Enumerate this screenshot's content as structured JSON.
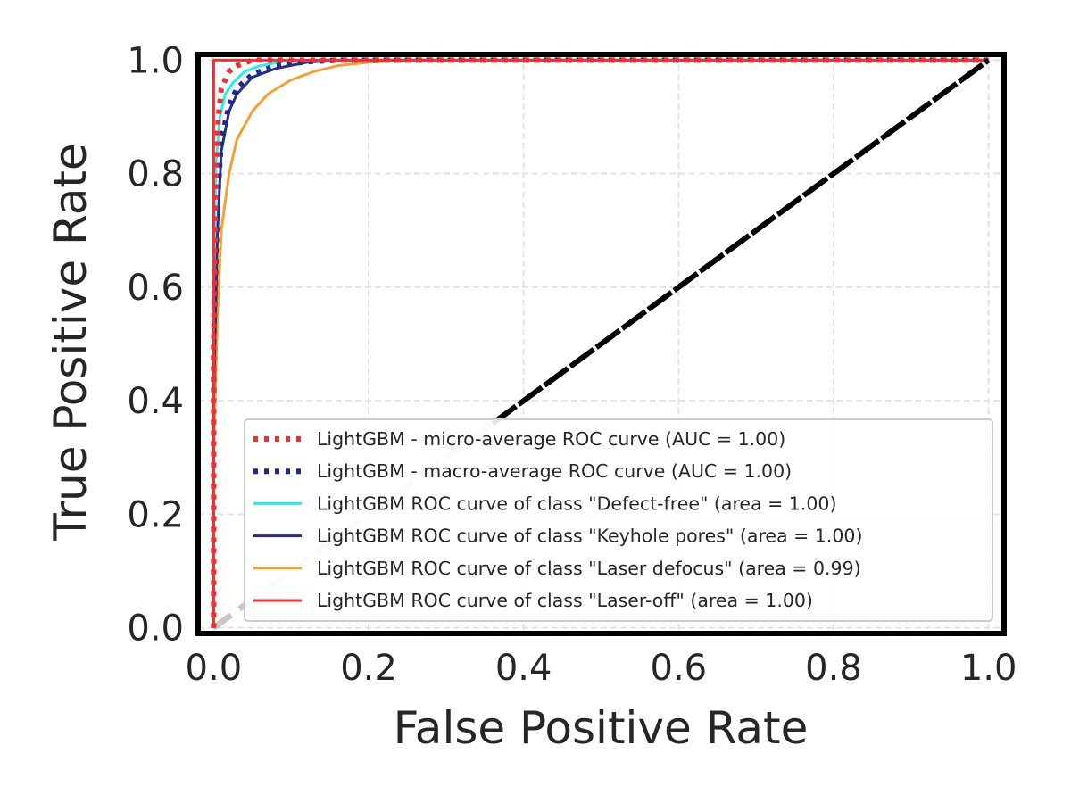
{
  "chart_data": {
    "type": "line",
    "title": "",
    "xlabel": "False Positive Rate",
    "ylabel": "True Positive Rate",
    "xlim": [
      -0.02,
      1.02
    ],
    "ylim": [
      -0.01,
      1.01
    ],
    "xticks": [
      0.0,
      0.2,
      0.4,
      0.6,
      0.8,
      1.0
    ],
    "yticks": [
      0.0,
      0.2,
      0.4,
      0.6,
      0.8,
      1.0
    ],
    "xtick_labels": [
      "0.0",
      "0.2",
      "0.4",
      "0.6",
      "0.8",
      "1.0"
    ],
    "ytick_labels": [
      "0.0",
      "0.2",
      "0.4",
      "0.6",
      "0.8",
      "1.0"
    ],
    "grid": true,
    "legend_position": "lower-right",
    "series": [
      {
        "name": "LightGBM - micro-average ROC curve (AUC = 1.00)",
        "color": "#f03030",
        "style": "dotted",
        "x": [
          0.0,
          0.0,
          0.003,
          0.006,
          0.01,
          0.02,
          0.03,
          0.05,
          1.0
        ],
        "y": [
          0.0,
          0.5,
          0.8,
          0.9,
          0.95,
          0.98,
          0.99,
          1.0,
          1.0
        ]
      },
      {
        "name": "LightGBM - macro-average ROC curve (AUC = 1.00)",
        "color": "#1f2a8a",
        "style": "dotted",
        "x": [
          0.0,
          0.0,
          0.005,
          0.01,
          0.02,
          0.03,
          0.05,
          0.08,
          0.12,
          0.16,
          1.0
        ],
        "y": [
          0.0,
          0.5,
          0.75,
          0.86,
          0.92,
          0.95,
          0.975,
          0.99,
          0.997,
          1.0,
          1.0
        ]
      },
      {
        "name": "LightGBM ROC curve of class \"Defect-free\" (area = 1.00)",
        "color": "#22f0f0",
        "style": "solid",
        "x": [
          0.0,
          0.0,
          0.003,
          0.008,
          0.015,
          0.025,
          0.04,
          0.06,
          0.1,
          1.0
        ],
        "y": [
          0.0,
          0.6,
          0.82,
          0.9,
          0.94,
          0.96,
          0.98,
          0.99,
          1.0,
          1.0
        ]
      },
      {
        "name": "LightGBM ROC curve of class \"Keyhole pores\" (area = 1.00)",
        "color": "#2a2a96",
        "style": "solid",
        "x": [
          0.0,
          0.0,
          0.005,
          0.01,
          0.02,
          0.03,
          0.05,
          0.08,
          0.12,
          0.16,
          1.0
        ],
        "y": [
          0.0,
          0.4,
          0.7,
          0.84,
          0.91,
          0.94,
          0.97,
          0.985,
          0.996,
          1.0,
          1.0
        ]
      },
      {
        "name": "LightGBM ROC curve of class \"Laser defocus\" (area = 0.99)",
        "color": "#f5a030",
        "style": "solid",
        "x": [
          0.0,
          0.0,
          0.005,
          0.01,
          0.02,
          0.03,
          0.05,
          0.07,
          0.1,
          0.13,
          0.16,
          0.2,
          0.25,
          1.0
        ],
        "y": [
          0.0,
          0.3,
          0.55,
          0.7,
          0.8,
          0.86,
          0.91,
          0.94,
          0.965,
          0.98,
          0.99,
          0.996,
          1.0,
          1.0
        ]
      },
      {
        "name": "LightGBM ROC curve of class \"Laser-off\" (area = 1.00)",
        "color": "#f03030",
        "style": "solid",
        "x": [
          0.0,
          0.0,
          1.0
        ],
        "y": [
          0.0,
          1.0,
          1.0
        ]
      }
    ],
    "reference_lines": [
      {
        "color": "#000000",
        "style": "dashed",
        "x": [
          0.0,
          1.0
        ],
        "y": [
          0.0,
          1.0
        ]
      },
      {
        "color": "#c8c8c8",
        "style": "dashed",
        "x": [
          0.0,
          0.36
        ],
        "y": [
          0.0,
          0.36
        ]
      }
    ]
  }
}
